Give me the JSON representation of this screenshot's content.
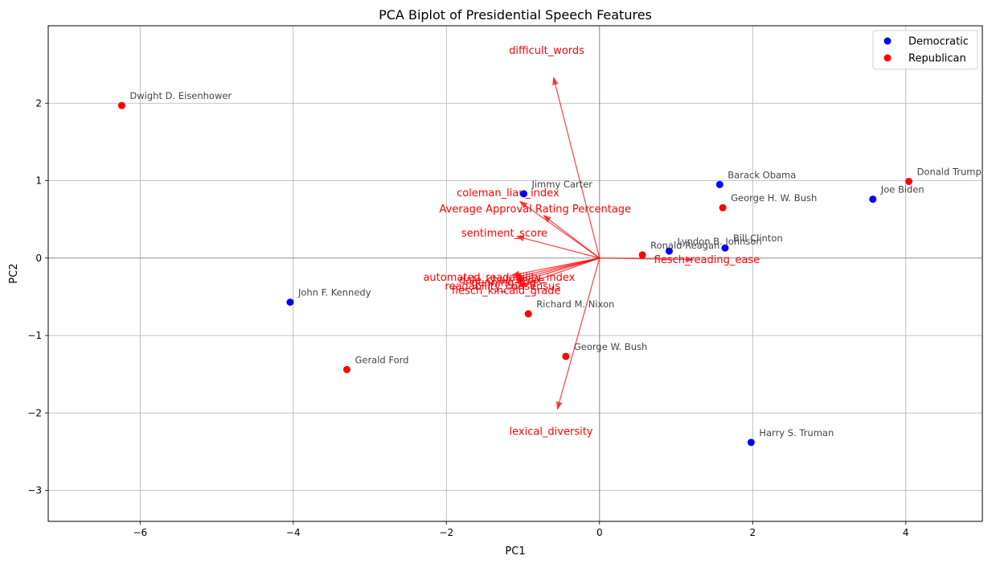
{
  "chart_data": {
    "type": "scatter",
    "title": "PCA Biplot of Presidential Speech Features",
    "xlabel": "PC1",
    "ylabel": "PC2",
    "xlim": [
      -7.2,
      5.0
    ],
    "ylim": [
      -3.4,
      3.0
    ],
    "xticks": [
      -6,
      -4,
      -2,
      0,
      2,
      4
    ],
    "yticks": [
      -3,
      -2,
      -1,
      0,
      1,
      2
    ],
    "grid": true,
    "legend_position": "top-right",
    "series": [
      {
        "name": "Democratic",
        "color": "#0000ff",
        "points": [
          {
            "label": "Jimmy Carter",
            "x": -0.99,
            "y": 0.83
          },
          {
            "label": "Barack Obama",
            "x": 1.57,
            "y": 0.95
          },
          {
            "label": "Joe Biden",
            "x": 3.57,
            "y": 0.76
          },
          {
            "label": "Lyndon B. Johnson",
            "x": 0.91,
            "y": 0.09
          },
          {
            "label": "Bill Clinton",
            "x": 1.64,
            "y": 0.13
          },
          {
            "label": "John F. Kennedy",
            "x": -4.04,
            "y": -0.57
          },
          {
            "label": "Harry S. Truman",
            "x": 1.98,
            "y": -2.38
          }
        ]
      },
      {
        "name": "Republican",
        "color": "#ff0000",
        "points": [
          {
            "label": "Dwight D. Eisenhower",
            "x": -6.24,
            "y": 1.97
          },
          {
            "label": "Donald Trump",
            "x": 4.04,
            "y": 0.99
          },
          {
            "label": "George H. W. Bush",
            "x": 1.61,
            "y": 0.65
          },
          {
            "label": "Ronald Reagan",
            "x": 0.56,
            "y": 0.04
          },
          {
            "label": "Richard M. Nixon",
            "x": -0.93,
            "y": -0.72
          },
          {
            "label": "George W. Bush",
            "x": -0.44,
            "y": -1.27
          },
          {
            "label": "Gerald Ford",
            "x": -3.3,
            "y": -1.44
          }
        ]
      }
    ],
    "loadings": {
      "color": "#ff0000",
      "vectors": [
        {
          "label": "difficult_words",
          "x": -0.6,
          "y": 2.33
        },
        {
          "label": "coleman_liau_index",
          "x": -1.04,
          "y": 0.73
        },
        {
          "label": "Average Approval Rating Percentage",
          "x": -0.73,
          "y": 0.55
        },
        {
          "label": "sentiment_score",
          "x": -1.08,
          "y": 0.28
        },
        {
          "label": "flesch_reading_ease",
          "x": 1.22,
          "y": -0.02
        },
        {
          "label": "automated_readability_index",
          "x": -1.14,
          "y": -0.22
        },
        {
          "label": "dale_chall_score",
          "x": -1.11,
          "y": -0.25
        },
        {
          "label": "gunning_fog",
          "x": -1.09,
          "y": -0.28
        },
        {
          "label": "readability_consensus",
          "x": -1.1,
          "y": -0.32
        },
        {
          "label": "flesch_kincaid_grade",
          "x": -1.06,
          "y": -0.37
        },
        {
          "label": "lexical_diversity",
          "x": -0.55,
          "y": -1.95
        }
      ]
    }
  }
}
